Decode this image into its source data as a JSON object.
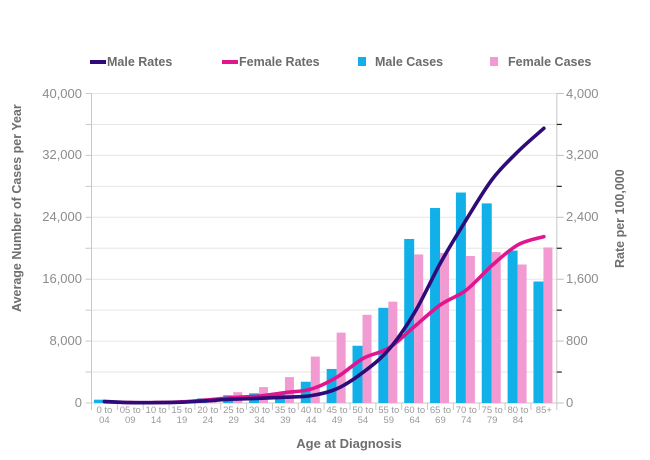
{
  "chart_data": {
    "type": "bar+line",
    "title": "",
    "xlabel": "Age at Diagnosis",
    "ylabel_left": "Average Number of Cases per Year",
    "ylabel_right": "Rate per 100,000",
    "ylim_left": [
      0,
      40000
    ],
    "ylim_right": [
      0,
      4000
    ],
    "y_left_ticks": [
      "0",
      "8,000",
      "16,000",
      "24,000",
      "32,000",
      "40,000"
    ],
    "y_right_ticks": [
      "0",
      "800",
      "1,600",
      "2,400",
      "3,200",
      "4,000"
    ],
    "grid": true,
    "legend_position": "top",
    "categories": [
      "0 to 04",
      "05 to 09",
      "10 to 14",
      "15 to 19",
      "20 to 24",
      "25 to 29",
      "30 to 34",
      "35 to 39",
      "40 to 44",
      "45 to 49",
      "50 to 54",
      "55 to 59",
      "60 to 64",
      "65 to 69",
      "70 to 74",
      "75 to 79",
      "80 to 84",
      "85+"
    ],
    "series": [
      {
        "name": "Male Rates",
        "type": "line",
        "axis": "right",
        "color": "#2e0b78",
        "values": [
          20,
          5,
          5,
          10,
          30,
          50,
          60,
          75,
          95,
          185,
          395,
          690,
          1170,
          1810,
          2370,
          2890,
          3250,
          3550
        ]
      },
      {
        "name": "Female Rates",
        "type": "line",
        "axis": "right",
        "color": "#e0168e",
        "values": [
          15,
          5,
          5,
          15,
          40,
          70,
          90,
          135,
          180,
          335,
          575,
          710,
          990,
          1270,
          1460,
          1780,
          2045,
          2150
        ]
      },
      {
        "name": "Male Cases",
        "type": "bar",
        "axis": "left",
        "color": "#12b0e8",
        "values": [
          430,
          100,
          100,
          200,
          600,
          1000,
          1250,
          1300,
          2750,
          4400,
          7400,
          12300,
          21200,
          25200,
          27200,
          25800,
          19700,
          15700
        ]
      },
      {
        "name": "Female Cases",
        "type": "bar",
        "axis": "left",
        "color": "#f29bd3",
        "values": [
          300,
          100,
          100,
          300,
          500,
          1400,
          2050,
          3350,
          6000,
          9100,
          11400,
          13100,
          19200,
          19400,
          19000,
          19500,
          17900,
          20100
        ]
      }
    ]
  }
}
